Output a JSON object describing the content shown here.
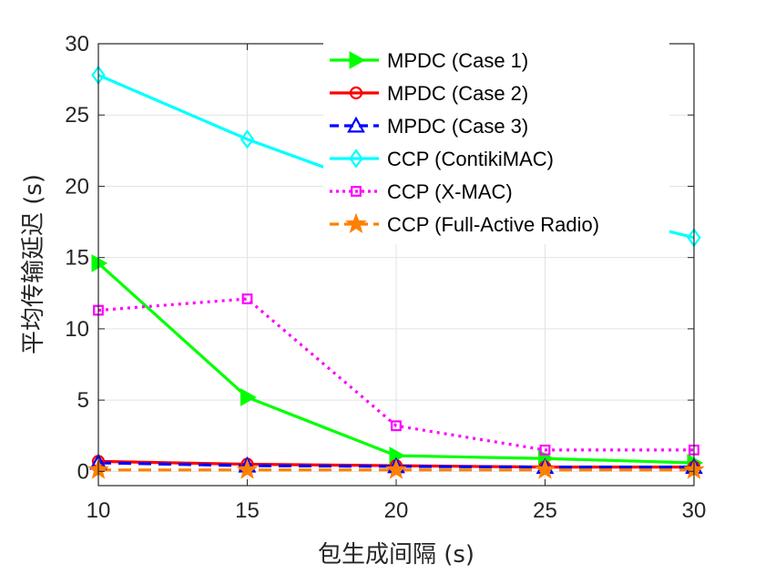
{
  "chart_data": {
    "type": "line",
    "title": "",
    "xlabel": "包生成间隔 (s)",
    "ylabel": "平均传输延迟 (s)",
    "x": [
      10,
      15,
      20,
      25,
      30
    ],
    "xlim": [
      10,
      30
    ],
    "ylim": [
      -1,
      30
    ],
    "xticks": [
      "10",
      "15",
      "20",
      "25",
      "30"
    ],
    "yticks": [
      "0",
      "5",
      "10",
      "15",
      "20",
      "25",
      "30"
    ],
    "grid": true,
    "legend_position": "top-right",
    "series": [
      {
        "name": "MPDC (Case 1)",
        "values": [
          14.6,
          5.2,
          1.1,
          0.9,
          0.6
        ],
        "color": "#00ff00",
        "dash": "solid",
        "marker": "triangle-right"
      },
      {
        "name": "MPDC (Case 2)",
        "values": [
          0.7,
          0.5,
          0.4,
          0.3,
          0.3
        ],
        "color": "#ff0000",
        "dash": "solid",
        "marker": "circle"
      },
      {
        "name": "MPDC (Case 3)",
        "values": [
          0.6,
          0.4,
          0.35,
          0.3,
          0.3
        ],
        "color": "#0000ff",
        "dash": "dashed",
        "marker": "triangle-up"
      },
      {
        "name": "CCP (ContikiMAC)",
        "values": [
          27.8,
          23.3,
          19.5,
          19.0,
          16.4
        ],
        "color": "#00ffff",
        "dash": "solid",
        "marker": "diamond"
      },
      {
        "name": "CCP (X-MAC)",
        "values": [
          11.3,
          12.1,
          3.2,
          1.5,
          1.5
        ],
        "color": "#ff00ff",
        "dash": "dotted",
        "marker": "square"
      },
      {
        "name": "CCP (Full-Active Radio)",
        "values": [
          0.1,
          0.1,
          0.1,
          0.1,
          0.1
        ],
        "color": "#ff8000",
        "dash": "dashed",
        "marker": "star"
      }
    ]
  }
}
